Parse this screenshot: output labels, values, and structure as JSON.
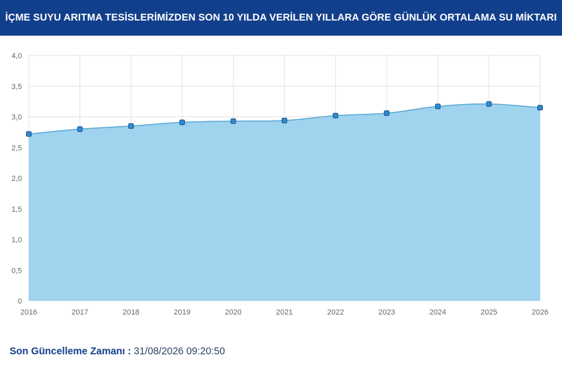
{
  "header": {
    "title": "İÇME SUYU ARITMA TESİSLERİMİZDEN SON 10 YILDA VERİLEN YILLARA GÖRE GÜNLÜK ORTALAMA SU MİKTARI"
  },
  "footer": {
    "label": "Son Güncelleme Zamanı :",
    "value": "31/08/2026 09:20:50"
  },
  "colors": {
    "header_bg": "#123f8c",
    "area_fill": "#9fd3ee",
    "line": "#5aa8d3",
    "marker_fill": "#2e8cd0",
    "marker_stroke": "#1b4f8f",
    "grid": "#e3e3e3"
  },
  "chart_data": {
    "type": "area",
    "x": [
      "2016",
      "2017",
      "2018",
      "2019",
      "2020",
      "2021",
      "2022",
      "2023",
      "2024",
      "2025",
      "2026"
    ],
    "series": [
      {
        "values": [
          2.72,
          2.8,
          2.85,
          2.91,
          2.93,
          2.94,
          3.02,
          3.06,
          3.17,
          3.21,
          3.15
        ]
      }
    ],
    "yticks": [
      "0",
      "0,5",
      "1,0",
      "1,5",
      "2,0",
      "2,5",
      "3,0",
      "3,5",
      "4,0"
    ],
    "ylim": [
      0,
      4
    ],
    "title": "",
    "xlabel": "",
    "ylabel": "",
    "grid": true,
    "smooth": true
  }
}
